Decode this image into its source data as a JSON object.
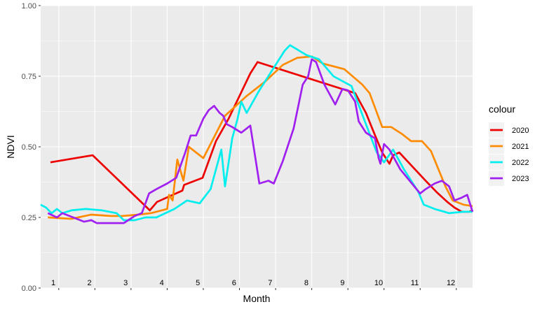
{
  "chart_data": {
    "type": "line",
    "title": "",
    "xlabel": "Month",
    "ylabel": "NDVI",
    "ylim": [
      0,
      1
    ],
    "xlim": [
      0.5,
      12.45
    ],
    "yticks": [
      0.0,
      0.25,
      0.5,
      0.75,
      1.0
    ],
    "ytick_labels": [
      "0.00",
      "0.25",
      "0.50",
      "0.75",
      "1.00"
    ],
    "month_labels": [
      "1",
      "2",
      "3",
      "4",
      "5",
      "6",
      "7",
      "8",
      "9",
      "10",
      "11",
      "12"
    ],
    "grid": true,
    "legend_title": "colour",
    "legend_position": "right",
    "series": [
      {
        "name": "2020",
        "color": "#ee0000",
        "points": [
          [
            0.77,
            0.445
          ],
          [
            1.94,
            0.47
          ],
          [
            3.52,
            0.275
          ],
          [
            3.72,
            0.305
          ],
          [
            4.42,
            0.345
          ],
          [
            4.47,
            0.365
          ],
          [
            4.98,
            0.39
          ],
          [
            5.35,
            0.52
          ],
          [
            5.7,
            0.6
          ],
          [
            6.3,
            0.76
          ],
          [
            6.5,
            0.8
          ],
          [
            9.2,
            0.69
          ],
          [
            9.5,
            0.62
          ],
          [
            9.72,
            0.55
          ],
          [
            9.95,
            0.48
          ],
          [
            10.15,
            0.44
          ],
          [
            10.25,
            0.47
          ],
          [
            10.42,
            0.48
          ],
          [
            11.15,
            0.38
          ],
          [
            11.45,
            0.34
          ],
          [
            11.75,
            0.305
          ],
          [
            11.95,
            0.285
          ],
          [
            12.15,
            0.27
          ],
          [
            12.35,
            0.27
          ],
          [
            12.45,
            0.275
          ]
        ]
      },
      {
        "name": "2021",
        "color": "#ff8c00",
        "points": [
          [
            0.7,
            0.25
          ],
          [
            1.35,
            0.245
          ],
          [
            1.9,
            0.26
          ],
          [
            2.45,
            0.255
          ],
          [
            2.75,
            0.255
          ],
          [
            3.2,
            0.26
          ],
          [
            3.55,
            0.265
          ],
          [
            4.0,
            0.28
          ],
          [
            4.05,
            0.33
          ],
          [
            4.15,
            0.31
          ],
          [
            4.28,
            0.455
          ],
          [
            4.45,
            0.38
          ],
          [
            4.6,
            0.5
          ],
          [
            5.0,
            0.46
          ],
          [
            5.6,
            0.61
          ],
          [
            6.2,
            0.68
          ],
          [
            6.7,
            0.73
          ],
          [
            7.2,
            0.79
          ],
          [
            7.6,
            0.815
          ],
          [
            8.0,
            0.82
          ],
          [
            8.3,
            0.795
          ],
          [
            8.9,
            0.775
          ],
          [
            9.4,
            0.72
          ],
          [
            9.6,
            0.69
          ],
          [
            9.95,
            0.57
          ],
          [
            10.2,
            0.57
          ],
          [
            10.5,
            0.545
          ],
          [
            10.75,
            0.52
          ],
          [
            11.05,
            0.52
          ],
          [
            11.3,
            0.485
          ],
          [
            11.7,
            0.36
          ],
          [
            11.9,
            0.31
          ],
          [
            12.2,
            0.295
          ],
          [
            12.45,
            0.29
          ]
        ]
      },
      {
        "name": "2022",
        "color": "#00eeee",
        "points": [
          [
            0.5,
            0.295
          ],
          [
            0.65,
            0.285
          ],
          [
            0.8,
            0.265
          ],
          [
            0.95,
            0.28
          ],
          [
            1.1,
            0.265
          ],
          [
            1.35,
            0.275
          ],
          [
            1.75,
            0.28
          ],
          [
            2.2,
            0.275
          ],
          [
            2.6,
            0.265
          ],
          [
            2.8,
            0.24
          ],
          [
            3.1,
            0.24
          ],
          [
            3.4,
            0.25
          ],
          [
            3.7,
            0.25
          ],
          [
            4.2,
            0.28
          ],
          [
            4.55,
            0.31
          ],
          [
            4.9,
            0.3
          ],
          [
            5.2,
            0.35
          ],
          [
            5.5,
            0.49
          ],
          [
            5.6,
            0.36
          ],
          [
            5.8,
            0.53
          ],
          [
            5.95,
            0.6
          ],
          [
            6.05,
            0.66
          ],
          [
            6.2,
            0.62
          ],
          [
            6.55,
            0.7
          ],
          [
            6.95,
            0.78
          ],
          [
            7.25,
            0.84
          ],
          [
            7.4,
            0.86
          ],
          [
            7.85,
            0.825
          ],
          [
            8.2,
            0.81
          ],
          [
            8.6,
            0.75
          ],
          [
            9.1,
            0.715
          ],
          [
            9.5,
            0.58
          ],
          [
            9.8,
            0.48
          ],
          [
            10.0,
            0.445
          ],
          [
            10.25,
            0.49
          ],
          [
            10.55,
            0.42
          ],
          [
            10.95,
            0.34
          ],
          [
            11.1,
            0.295
          ],
          [
            11.4,
            0.28
          ],
          [
            11.8,
            0.265
          ],
          [
            12.2,
            0.27
          ],
          [
            12.45,
            0.27
          ]
        ]
      },
      {
        "name": "2023",
        "color": "#a020f0",
        "points": [
          [
            0.7,
            0.265
          ],
          [
            0.95,
            0.25
          ],
          [
            1.1,
            0.265
          ],
          [
            1.3,
            0.255
          ],
          [
            1.5,
            0.245
          ],
          [
            1.7,
            0.235
          ],
          [
            1.9,
            0.24
          ],
          [
            2.05,
            0.23
          ],
          [
            2.2,
            0.23
          ],
          [
            2.4,
            0.23
          ],
          [
            2.8,
            0.23
          ],
          [
            3.1,
            0.255
          ],
          [
            3.3,
            0.265
          ],
          [
            3.5,
            0.335
          ],
          [
            3.7,
            0.35
          ],
          [
            4.0,
            0.37
          ],
          [
            4.25,
            0.39
          ],
          [
            4.5,
            0.48
          ],
          [
            4.65,
            0.54
          ],
          [
            4.8,
            0.54
          ],
          [
            5.0,
            0.6
          ],
          [
            5.15,
            0.63
          ],
          [
            5.3,
            0.645
          ],
          [
            5.45,
            0.62
          ],
          [
            5.55,
            0.61
          ],
          [
            5.65,
            0.58
          ],
          [
            5.8,
            0.57
          ],
          [
            6.05,
            0.55
          ],
          [
            6.25,
            0.57
          ],
          [
            6.3,
            0.575
          ],
          [
            6.55,
            0.37
          ],
          [
            6.8,
            0.38
          ],
          [
            6.95,
            0.37
          ],
          [
            7.2,
            0.45
          ],
          [
            7.5,
            0.565
          ],
          [
            7.75,
            0.72
          ],
          [
            7.9,
            0.75
          ],
          [
            8.0,
            0.81
          ],
          [
            8.12,
            0.8
          ],
          [
            8.35,
            0.72
          ],
          [
            8.65,
            0.65
          ],
          [
            8.85,
            0.705
          ],
          [
            9.0,
            0.7
          ],
          [
            9.2,
            0.66
          ],
          [
            9.3,
            0.59
          ],
          [
            9.5,
            0.55
          ],
          [
            9.75,
            0.53
          ],
          [
            9.85,
            0.46
          ],
          [
            9.9,
            0.44
          ],
          [
            10.0,
            0.51
          ],
          [
            10.15,
            0.49
          ],
          [
            10.45,
            0.42
          ],
          [
            10.9,
            0.35
          ],
          [
            11.0,
            0.335
          ],
          [
            11.15,
            0.35
          ],
          [
            11.4,
            0.37
          ],
          [
            11.6,
            0.38
          ],
          [
            11.8,
            0.36
          ],
          [
            11.95,
            0.31
          ],
          [
            12.15,
            0.32
          ],
          [
            12.3,
            0.33
          ],
          [
            12.45,
            0.27
          ]
        ]
      }
    ]
  }
}
